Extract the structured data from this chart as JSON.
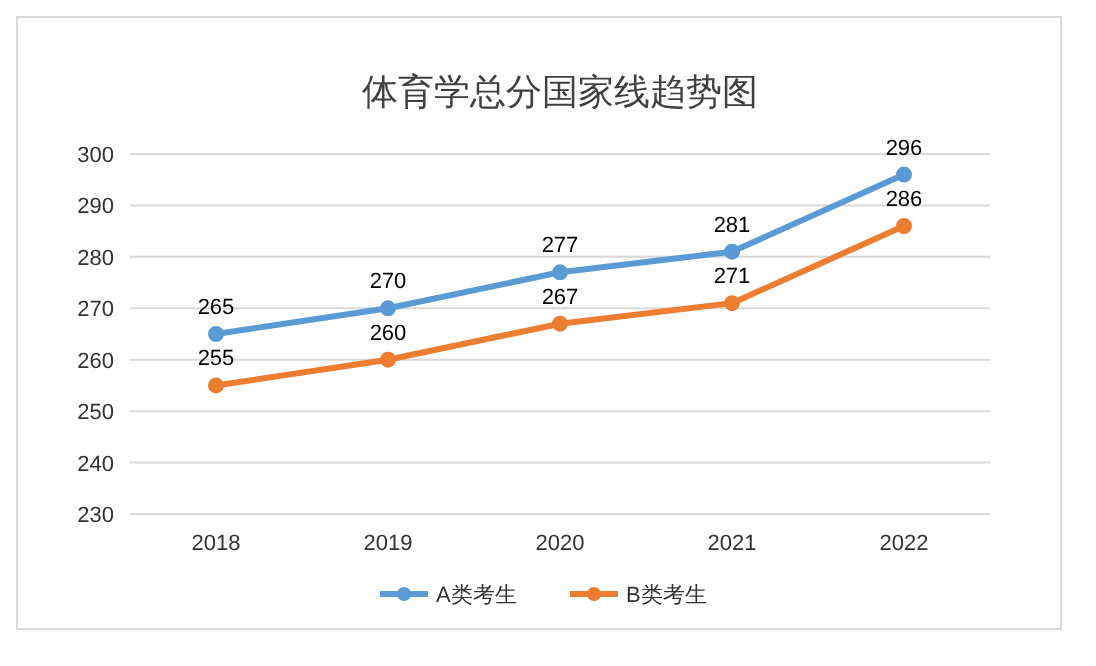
{
  "chart_data": {
    "type": "line",
    "title": "体育学总分国家线趋势图",
    "categories": [
      "2018",
      "2019",
      "2020",
      "2021",
      "2022"
    ],
    "series": [
      {
        "name": "A类考生",
        "color": "#5b9bd5",
        "values": [
          265,
          270,
          277,
          281,
          296
        ]
      },
      {
        "name": "B类考生",
        "color": "#ed7d31",
        "values": [
          255,
          260,
          267,
          271,
          286
        ]
      }
    ],
    "ylim": [
      230,
      300
    ],
    "yticks": [
      230,
      240,
      250,
      260,
      270,
      280,
      290,
      300
    ],
    "grid": "y",
    "legend": "bottom",
    "marker": "circle",
    "line_style": "solid",
    "data_labels": true
  }
}
